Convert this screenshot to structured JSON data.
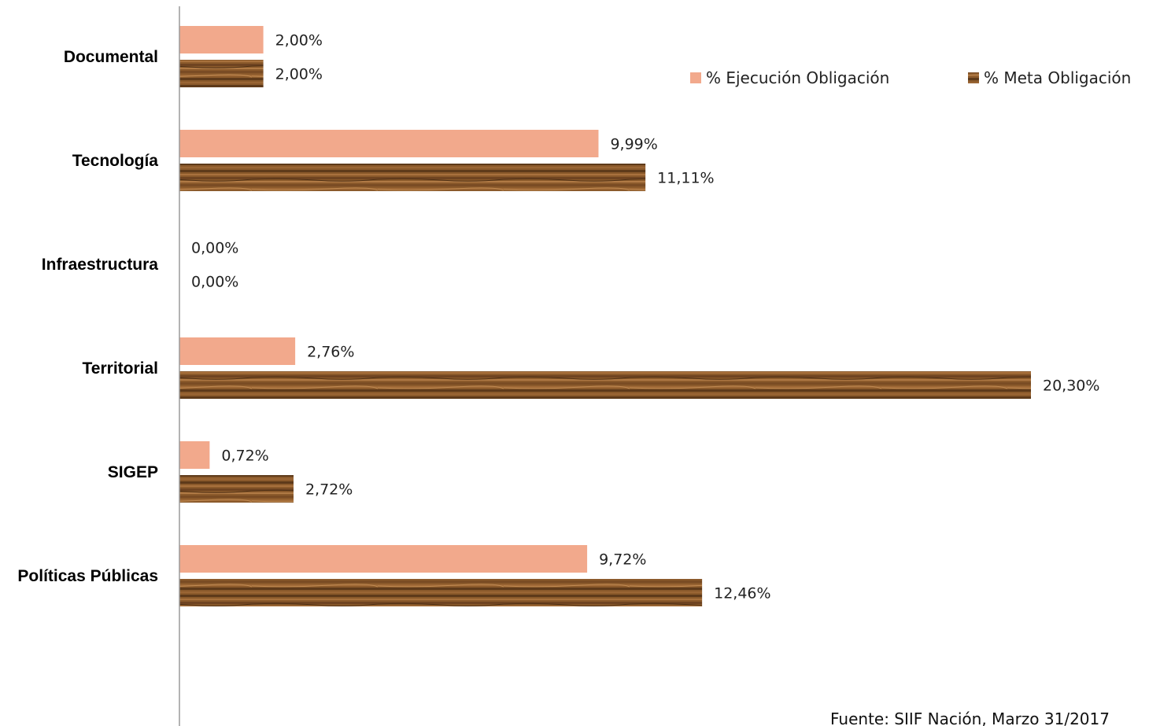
{
  "chart_data": {
    "type": "bar",
    "orientation": "horizontal",
    "categories": [
      "Documental",
      "Tecnología",
      "Infraestructura",
      "Territorial",
      "SIGEP",
      "Políticas Públicas"
    ],
    "series": [
      {
        "name": "% Ejecución Obligación",
        "color": "#F2A98C",
        "values": [
          2.0,
          9.99,
          0.0,
          2.76,
          0.72,
          9.72
        ],
        "labels": [
          "2,00%",
          "9,99%",
          "0,00%",
          "2,76%",
          "0,72%",
          "9,72%"
        ]
      },
      {
        "name": "% Meta Obligación",
        "color": "#8A5A2E",
        "values": [
          2.0,
          11.11,
          0.0,
          20.3,
          2.72,
          12.46
        ],
        "labels": [
          "2,00%",
          "11,11%",
          "0,00%",
          "20,30%",
          "2,72%",
          "12,46%"
        ]
      }
    ],
    "xlim": [
      0,
      21.2
    ],
    "grid": false,
    "legend_position": "top-right",
    "source_note": "Fuente: SIIF Nación, Marzo 31/2017"
  }
}
